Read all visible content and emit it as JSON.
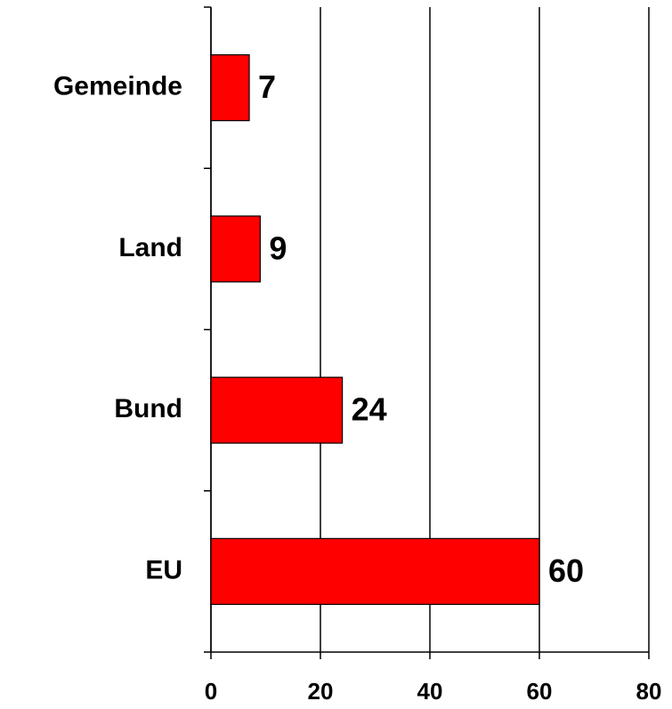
{
  "chart_data": {
    "type": "bar",
    "orientation": "horizontal",
    "categories": [
      "Gemeinde",
      "Land",
      "Bund",
      "EU"
    ],
    "values": [
      7,
      9,
      24,
      60
    ],
    "color": "#ff0000",
    "xlim": [
      0,
      80
    ],
    "xticks": [
      0,
      20,
      40,
      60,
      80
    ],
    "grid": true
  }
}
